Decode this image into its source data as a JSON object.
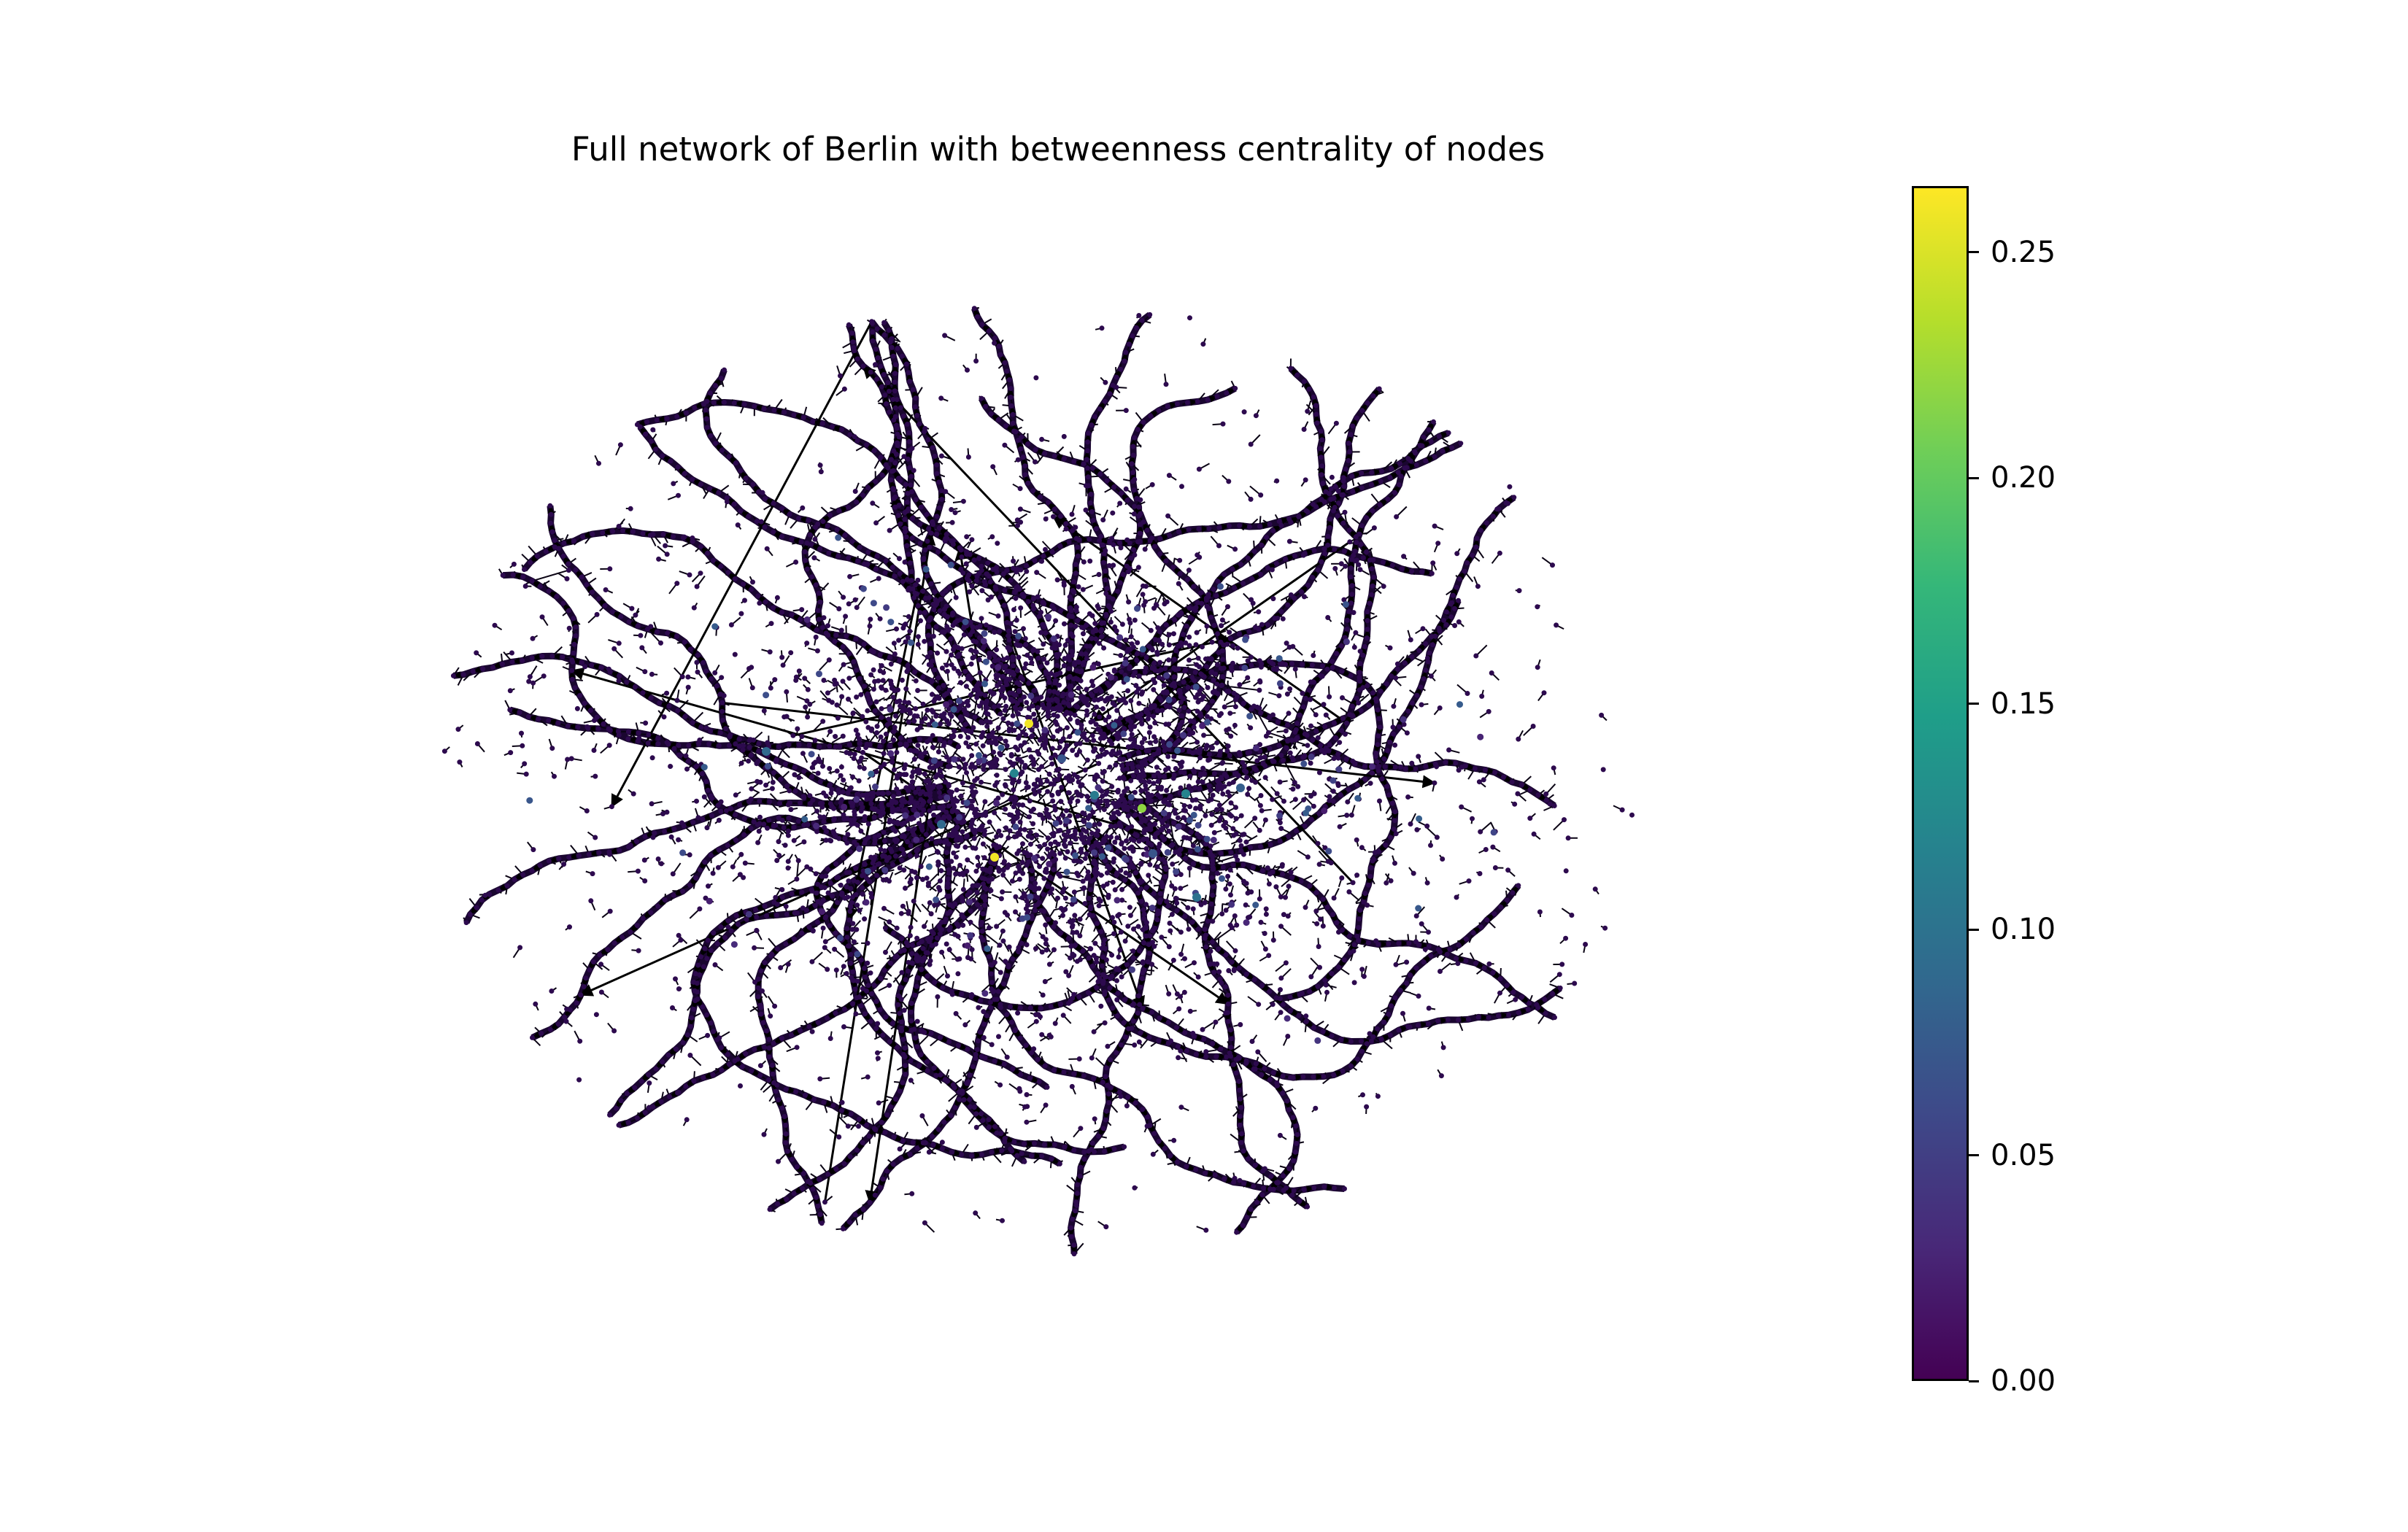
{
  "figure": {
    "title": "Full network of Berlin with betweenness centrality of nodes"
  },
  "colorbar": {
    "colormap": "viridis",
    "range": [
      0.0,
      0.2647
    ],
    "ticks": [
      {
        "value": 0.0,
        "label": "0.00"
      },
      {
        "value": 0.05,
        "label": "0.05"
      },
      {
        "value": 0.1,
        "label": "0.10"
      },
      {
        "value": 0.15,
        "label": "0.15"
      },
      {
        "value": 0.2,
        "label": "0.20"
      },
      {
        "value": 0.25,
        "label": "0.25"
      }
    ],
    "colors": [
      "#440154",
      "#482878",
      "#3e4989",
      "#31688e",
      "#26828e",
      "#1f9e89",
      "#35b779",
      "#6ece58",
      "#b5de2b",
      "#fde725"
    ]
  },
  "graph": {
    "edge_color": "#000000",
    "node_base_color": "#2d0a4e",
    "highlight_nodes": [
      {
        "centrality": 0.26
      },
      {
        "centrality": 0.26
      },
      {
        "centrality": 0.22
      },
      {
        "centrality": 0.12
      },
      {
        "centrality": 0.12
      },
      {
        "centrality": 0.11
      },
      {
        "centrality": 0.1
      },
      {
        "centrality": 0.09
      },
      {
        "centrality": 0.09
      },
      {
        "centrality": 0.08
      },
      {
        "centrality": 0.07
      },
      {
        "centrality": 0.07
      }
    ]
  }
}
